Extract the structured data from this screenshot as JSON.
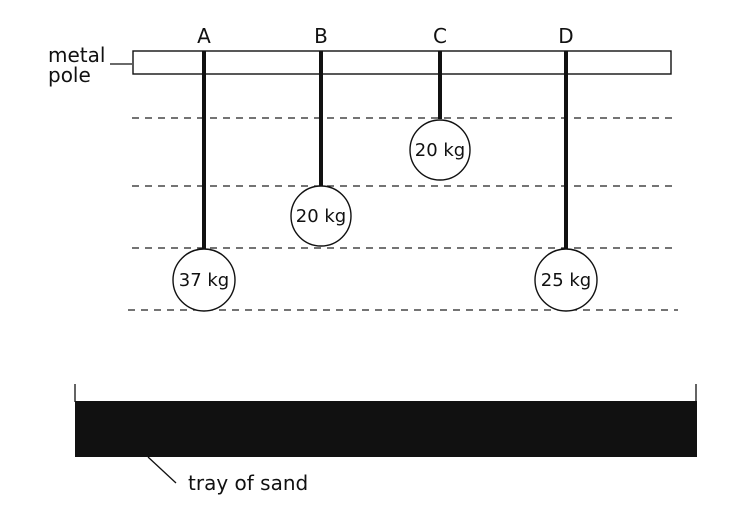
{
  "pole_label_line1": "metal",
  "pole_label_line2": "pole",
  "tray_label": "tray of sand",
  "weights": [
    {
      "letter": "A",
      "mass": "37 kg"
    },
    {
      "letter": "B",
      "mass": "20 kg"
    },
    {
      "letter": "C",
      "mass": "20 kg"
    },
    {
      "letter": "D",
      "mass": "25 kg"
    }
  ]
}
